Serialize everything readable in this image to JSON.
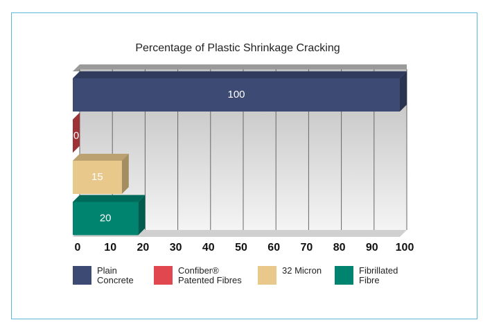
{
  "chart_data": {
    "type": "bar",
    "orientation": "horizontal",
    "title": "Percentage of Plastic Shrinkage Cracking",
    "categories": [
      "Plain Concrete",
      "Confiber® Patented Fibres",
      "32 Micron",
      "Fibrillated Fibre"
    ],
    "values": [
      100,
      0,
      15,
      20
    ],
    "colors": [
      "#3c4a74",
      "#e0474f",
      "#e9c98b",
      "#008470"
    ],
    "xlim": [
      0,
      100
    ],
    "xticks": [
      0,
      10,
      20,
      30,
      40,
      50,
      60,
      70,
      80,
      90,
      100
    ],
    "grid": true,
    "legend": "bottom"
  }
}
